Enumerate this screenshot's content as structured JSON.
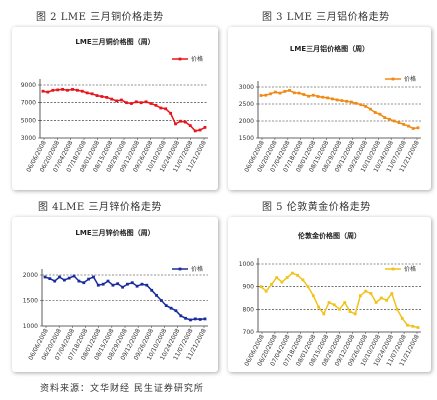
{
  "figures": [
    {
      "caption": "图 2   LME 三月铜价格走势"
    },
    {
      "caption": "图 3   LME 三月铝价格走势"
    },
    {
      "caption": "图 4LME 三月锌价格走势"
    },
    {
      "caption": "图 5   伦敦黄金价格走势"
    }
  ],
  "source": "资料来源：文华财经  民生证券研究所",
  "chart_data": [
    {
      "type": "line",
      "title": "LME三月铜价格图（周）",
      "legend": "价格",
      "legend_position": "top-right",
      "color": "#e8141c",
      "grid": true,
      "ylim": [
        3000,
        9000
      ],
      "yticks": [
        3000,
        5000,
        7000,
        9000
      ],
      "x_tick_labels": [
        "06/06/2008",
        "06/20/2008",
        "07/04/2008",
        "07/18/2008",
        "08/01/2008",
        "08/15/2008",
        "08/29/2008",
        "09/12/2008",
        "09/26/2008",
        "10/10/2008",
        "10/24/2008",
        "11/07/2008",
        "11/21/2008"
      ],
      "values": [
        8300,
        8200,
        8400,
        8450,
        8500,
        8400,
        8500,
        8400,
        8300,
        8100,
        8000,
        7800,
        7700,
        7600,
        7400,
        7200,
        7300,
        7000,
        6900,
        7100,
        7000,
        7100,
        6900,
        6700,
        6400,
        6300,
        5800,
        4600,
        4900,
        4800,
        4400,
        3800,
        3900,
        4200
      ]
    },
    {
      "type": "line",
      "title": "LME三月铝价格图（周）",
      "legend": "价格",
      "legend_position": "top-right",
      "color": "#f08a14",
      "grid": true,
      "ylim": [
        1500,
        3000
      ],
      "yticks": [
        1500,
        2000,
        2500,
        3000
      ],
      "x_tick_labels": [
        "06/06/2008",
        "06/20/2008",
        "07/04/2008",
        "07/18/2008",
        "08/01/2008",
        "08/15/2008",
        "08/29/2008",
        "09/12/2008",
        "09/26/2008",
        "10/10/2008",
        "10/24/2008",
        "11/07/2008",
        "11/21/2008"
      ],
      "values": [
        2750,
        2760,
        2800,
        2850,
        2820,
        2870,
        2900,
        2830,
        2820,
        2780,
        2730,
        2760,
        2720,
        2700,
        2680,
        2650,
        2620,
        2600,
        2580,
        2560,
        2520,
        2480,
        2430,
        2350,
        2250,
        2200,
        2100,
        2050,
        2000,
        1950,
        1900,
        1850,
        1780,
        1800
      ]
    },
    {
      "type": "line",
      "title": "LME三月锌价格图（周）",
      "legend": "价格",
      "legend_position": "top-right",
      "color": "#1a2c9c",
      "grid": true,
      "ylim": [
        1000,
        2000
      ],
      "yticks": [
        1000,
        1500,
        2000
      ],
      "x_tick_labels": [
        "06/06/2008",
        "06/20/2008",
        "07/04/2008",
        "07/18/2008",
        "08/01/2008",
        "08/15/2008",
        "08/29/2008",
        "09/12/2008",
        "09/26/2008",
        "10/10/2008",
        "10/24/2008",
        "11/07/2008",
        "11/21/2008"
      ],
      "values": [
        1960,
        1930,
        1880,
        1960,
        1900,
        1940,
        1980,
        1880,
        1850,
        1920,
        1960,
        1800,
        1820,
        1880,
        1800,
        1830,
        1760,
        1820,
        1850,
        1780,
        1820,
        1800,
        1700,
        1600,
        1500,
        1400,
        1350,
        1300,
        1200,
        1150,
        1120,
        1140,
        1130,
        1140
      ]
    },
    {
      "type": "line",
      "title": "伦敦金价格图（周）",
      "legend": "价格",
      "legend_position": "top-right",
      "color": "#f2c21a",
      "grid": true,
      "ylim": [
        700,
        1000
      ],
      "yticks": [
        700,
        800,
        900,
        1000
      ],
      "x_tick_labels": [
        "06/06/2008",
        "06/20/2008",
        "07/04/2008",
        "07/18/2008",
        "08/01/2008",
        "08/15/2008",
        "08/29/2008",
        "09/12/2008",
        "09/26/2008",
        "10/10/2008",
        "10/24/2008",
        "11/07/2008",
        "11/21/2008"
      ],
      "values": [
        900,
        880,
        910,
        940,
        920,
        940,
        960,
        950,
        930,
        900,
        860,
        810,
        780,
        830,
        820,
        800,
        830,
        790,
        780,
        860,
        880,
        870,
        830,
        850,
        840,
        870,
        800,
        760,
        730,
        725,
        720
      ]
    }
  ]
}
